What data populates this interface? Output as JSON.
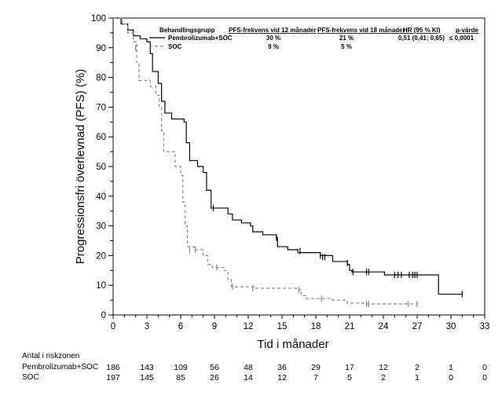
{
  "chart_data": {
    "type": "line",
    "subtype": "kaplan-meier",
    "xlabel": "Tid i månader",
    "ylabel": "Progressionsfri överlevnad (PFS) (%)",
    "xlim": [
      0,
      33
    ],
    "ylim": [
      0,
      100
    ],
    "x_ticks": [
      "0",
      "3",
      "6",
      "9",
      "12",
      "15",
      "18",
      "21",
      "24",
      "27",
      "30",
      "33"
    ],
    "y_ticks": [
      "0",
      "10",
      "20",
      "30",
      "40",
      "50",
      "60",
      "70",
      "80",
      "90",
      "100"
    ],
    "series": [
      {
        "name": "Pembrolizumab+SOC",
        "style": "solid",
        "color": "#000000",
        "steps": [
          [
            0,
            100
          ],
          [
            0.7,
            98
          ],
          [
            1.3,
            96
          ],
          [
            1.8,
            94
          ],
          [
            2.4,
            93
          ],
          [
            3.0,
            92
          ],
          [
            3.3,
            88
          ],
          [
            3.5,
            82
          ],
          [
            4.0,
            78
          ],
          [
            4.3,
            72
          ],
          [
            4.6,
            68
          ],
          [
            5.2,
            66
          ],
          [
            6.3,
            65
          ],
          [
            6.5,
            58
          ],
          [
            6.8,
            52
          ],
          [
            7.5,
            50
          ],
          [
            8.0,
            48
          ],
          [
            8.3,
            42
          ],
          [
            8.7,
            36
          ],
          [
            10.2,
            34
          ],
          [
            10.6,
            32
          ],
          [
            11.4,
            31
          ],
          [
            12.2,
            30
          ],
          [
            12.4,
            28
          ],
          [
            13.3,
            27
          ],
          [
            14.5,
            26
          ],
          [
            14.6,
            23
          ],
          [
            15.5,
            22
          ],
          [
            16.4,
            21
          ],
          [
            18.4,
            20
          ],
          [
            19.5,
            18
          ],
          [
            20.8,
            17
          ],
          [
            21.0,
            15
          ],
          [
            21.2,
            14.5
          ],
          [
            24.1,
            13.5
          ],
          [
            28.9,
            7
          ],
          [
            31.0,
            7
          ]
        ],
        "censors": [
          [
            8.9,
            36
          ],
          [
            14.5,
            26
          ],
          [
            16.6,
            21.5
          ],
          [
            18.4,
            20
          ],
          [
            18.6,
            19.5
          ],
          [
            18.8,
            19.5
          ],
          [
            20.8,
            17.5
          ],
          [
            21.3,
            14.5
          ],
          [
            22.5,
            14.5
          ],
          [
            22.7,
            14.5
          ],
          [
            25.0,
            13.5
          ],
          [
            25.3,
            13.5
          ],
          [
            25.6,
            13.5
          ],
          [
            26.3,
            13.5
          ],
          [
            26.6,
            13.5
          ],
          [
            26.8,
            13.5
          ],
          [
            27.0,
            13.5
          ],
          [
            31.0,
            7
          ]
        ]
      },
      {
        "name": "SOC",
        "style": "dashed",
        "color": "#888888",
        "steps": [
          [
            0,
            100
          ],
          [
            0.8,
            98
          ],
          [
            1.3,
            95
          ],
          [
            1.8,
            92
          ],
          [
            2.1,
            85
          ],
          [
            2.3,
            79
          ],
          [
            3.3,
            77
          ],
          [
            3.8,
            74
          ],
          [
            4.1,
            70
          ],
          [
            4.3,
            62
          ],
          [
            4.5,
            55
          ],
          [
            5.5,
            50
          ],
          [
            6.0,
            47
          ],
          [
            6.2,
            38
          ],
          [
            6.4,
            30
          ],
          [
            6.6,
            23
          ],
          [
            7.2,
            22
          ],
          [
            8.0,
            20
          ],
          [
            8.4,
            17
          ],
          [
            8.8,
            16
          ],
          [
            9.8,
            15
          ],
          [
            10.2,
            12
          ],
          [
            10.5,
            9.5
          ],
          [
            12.6,
            9
          ],
          [
            16.5,
            8.5
          ],
          [
            16.7,
            6.5
          ],
          [
            17.2,
            5.5
          ],
          [
            19.5,
            5
          ],
          [
            20.8,
            4
          ],
          [
            22.4,
            3.7
          ],
          [
            27.0,
            3.7
          ]
        ],
        "censors": [
          [
            2.0,
            90
          ],
          [
            6.8,
            22
          ],
          [
            7.3,
            22
          ],
          [
            9.2,
            16
          ],
          [
            10.6,
            9.5
          ],
          [
            12.4,
            9
          ],
          [
            16.5,
            8.5
          ],
          [
            18.5,
            5.5
          ],
          [
            22.5,
            3.7
          ],
          [
            22.7,
            3.7
          ],
          [
            26.2,
            3.7
          ],
          [
            27.0,
            3.7
          ]
        ]
      }
    ],
    "legend": {
      "position": "top-right",
      "headers": [
        "Behandlingsgrupp",
        "PFS-frekvens vid 12 månader",
        "PFS-frekvens vid 18 månader",
        "HR (95 % KI)",
        "p-värde"
      ],
      "rows": [
        {
          "group": "Pembrolizumab+SOC",
          "pfs12": "30 %",
          "pfs18": "21 %",
          "hr": "0,51 (0,41; 0,65)",
          "p": "≤ 0,0001"
        },
        {
          "group": "SOC",
          "pfs12": "9 %",
          "pfs18": "5 %",
          "hr": "",
          "p": ""
        }
      ]
    },
    "risk_table": {
      "title": "Antal i riskzonen",
      "rows": [
        {
          "label": "Pembrolizumab+SOC",
          "values": [
            "186",
            "143",
            "109",
            "56",
            "48",
            "36",
            "29",
            "17",
            "12",
            "2",
            "1",
            "0"
          ]
        },
        {
          "label": "SOC",
          "values": [
            "197",
            "145",
            "85",
            "26",
            "14",
            "12",
            "7",
            "5",
            "2",
            "1",
            "0",
            "0"
          ]
        }
      ]
    }
  }
}
